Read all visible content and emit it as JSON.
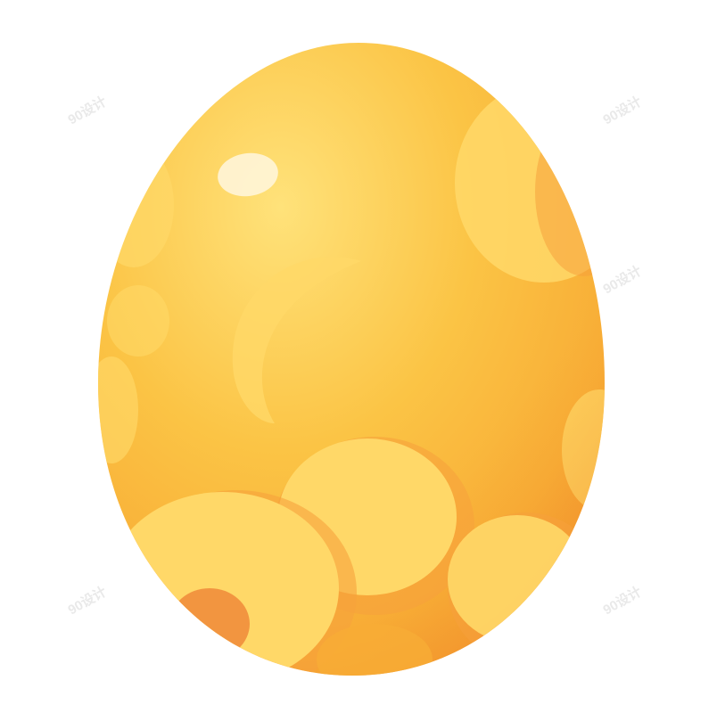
{
  "image": {
    "subject": "golden-egg",
    "colors": {
      "background": "#ffffff",
      "egg_highlight": "#ffe27a",
      "egg_base": "#fbc445",
      "egg_mid": "#f8ad36",
      "egg_shadow": "#f2912c",
      "spot_light": "#ffd868",
      "spot_warm": "#f6a13c",
      "spot_deep": "#f08a3a",
      "shine": "#fff4d6"
    },
    "watermark": "90设计"
  }
}
